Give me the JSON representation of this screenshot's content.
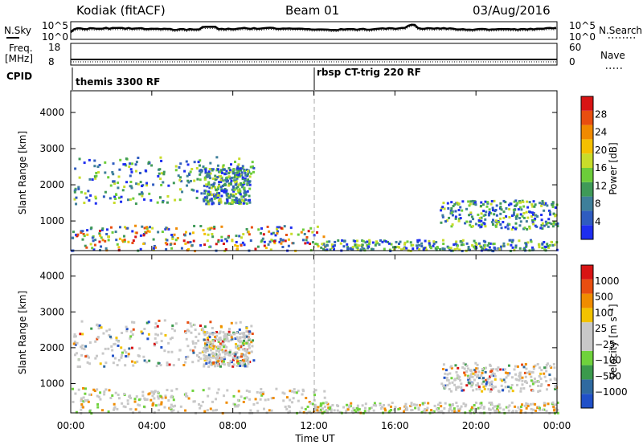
{
  "header": {
    "station": "Kodiak (fitACF)",
    "beam": "Beam 01",
    "date": "03/Aug/2016"
  },
  "top_panels": {
    "nsky_label": "N.Sky",
    "nsky_ticks": [
      "10^5",
      "10^0"
    ],
    "nsearch_label": "N.Search",
    "nsearch_ticks": [
      "10^5",
      "10^0"
    ],
    "freq_label": "Freq.",
    "freq_unit": "[MHz]",
    "freq_ticks": [
      "18",
      "8"
    ],
    "nave_label": "Nave",
    "nave_ticks": [
      "60",
      "0"
    ],
    "cpid_label": "CPID",
    "cpid_segments": [
      {
        "label": "themis 3300 RF",
        "start_hour": 0
      },
      {
        "label": "rbsp CT-trig 220 RF",
        "start_hour": 12
      }
    ]
  },
  "chart_data": [
    {
      "type": "heatmap",
      "name": "power",
      "ylabel": "Slant Range [km]",
      "y_ticks": [
        "1000",
        "2000",
        "3000",
        "4000"
      ],
      "y_tick_values": [
        1000,
        2000,
        3000,
        4000
      ],
      "ylim": [
        180,
        4600
      ],
      "xlim": [
        0,
        24
      ],
      "colorbar_label": "Power [dB]",
      "colorbar_ticks": [
        "28",
        "24",
        "20",
        "16",
        "12",
        "8",
        "4"
      ],
      "colorbar_colors": [
        "#1e2ef0",
        "#2f5cc0",
        "#3e7f9a",
        "#3f9a58",
        "#6ccc3a",
        "#c8dc2a",
        "#f5c000",
        "#f08a00",
        "#e84e10",
        "#d81414"
      ],
      "series": [
        {
          "type": "region",
          "t": [
            0.1,
            9.0
          ],
          "r": [
            1500,
            2800
          ]
        },
        {
          "type": "region",
          "t": [
            0.0,
            12.5
          ],
          "r": [
            200,
            900
          ]
        },
        {
          "type": "region",
          "t": [
            6.5,
            8.8
          ],
          "r": [
            1500,
            2500
          ]
        },
        {
          "type": "region",
          "t": [
            18.2,
            24.0
          ],
          "r": [
            800,
            1600
          ]
        },
        {
          "type": "region",
          "t": [
            12.0,
            24.0
          ],
          "r": [
            200,
            500
          ]
        }
      ]
    },
    {
      "type": "heatmap",
      "name": "velocity",
      "ylabel": "Slant Range [km]",
      "y_ticks": [
        "1000",
        "2000",
        "3000",
        "4000"
      ],
      "y_tick_values": [
        1000,
        2000,
        3000,
        4000
      ],
      "ylim": [
        180,
        4600
      ],
      "xlim": [
        0,
        24
      ],
      "xlabel": "Time UT",
      "x_ticks": [
        "00:00",
        "04:00",
        "08:00",
        "12:00",
        "16:00",
        "20:00",
        "00:00"
      ],
      "x_tick_values": [
        0,
        4,
        8,
        12,
        16,
        20,
        24
      ],
      "colorbar_label": "Velocity [m s⁻¹]",
      "colorbar_ticks": [
        "1000",
        "500",
        "100",
        "25",
        "−25",
        "−100",
        "−500",
        "−1000"
      ],
      "colorbar_colors": [
        "#2050c8",
        "#2f6aa0",
        "#3b9a4c",
        "#6fd23c",
        "#c8c8c8",
        "#c8c8c8",
        "#f2c200",
        "#f08c00",
        "#e84e10",
        "#d81414"
      ],
      "series": [
        {
          "type": "region",
          "t": [
            0.1,
            9.0
          ],
          "r": [
            1500,
            2800
          ]
        },
        {
          "type": "region",
          "t": [
            0.0,
            12.5
          ],
          "r": [
            200,
            900
          ]
        },
        {
          "type": "region",
          "t": [
            6.5,
            8.8
          ],
          "r": [
            1500,
            2500
          ]
        },
        {
          "type": "region",
          "t": [
            18.2,
            24.0
          ],
          "r": [
            800,
            1600
          ]
        },
        {
          "type": "region",
          "t": [
            12.0,
            24.0
          ],
          "r": [
            200,
            500
          ]
        }
      ]
    }
  ]
}
